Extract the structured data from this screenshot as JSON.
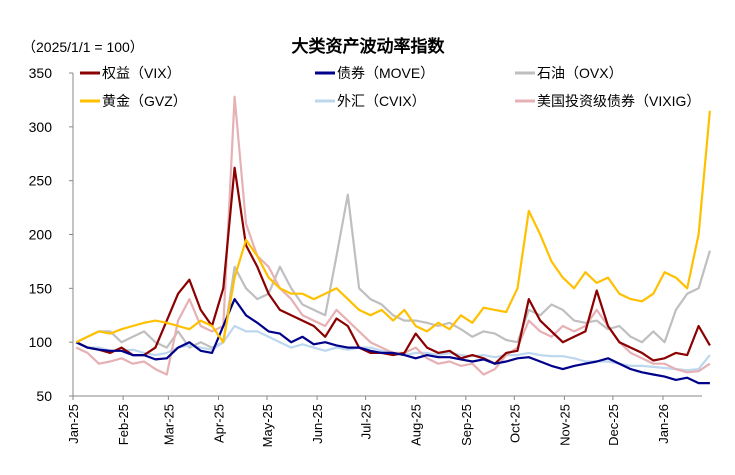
{
  "chart_data": {
    "type": "line",
    "title": "大类资产波动率指数",
    "subtitle": "（2025/1/1 = 100）",
    "xlabel": "",
    "ylabel": "",
    "ylim": [
      50,
      350
    ],
    "yticks": [
      "50",
      "100",
      "150",
      "200",
      "250",
      "300",
      "350"
    ],
    "xticks": [
      {
        "date": "2025-01-01",
        "label": "Jan-25"
      },
      {
        "date": "2025-02-01",
        "label": "Feb-25"
      },
      {
        "date": "2025-03-01",
        "label": "Mar-25"
      },
      {
        "date": "2025-04-01",
        "label": "Apr-25"
      },
      {
        "date": "2025-05-01",
        "label": "May-25"
      },
      {
        "date": "2025-06-01",
        "label": "Jun-25"
      },
      {
        "date": "2025-07-01",
        "label": "Jul-25"
      },
      {
        "date": "2025-08-01",
        "label": "Aug-25"
      },
      {
        "date": "2025-09-01",
        "label": "Sep-25"
      },
      {
        "date": "2025-10-01",
        "label": "Oct-25"
      },
      {
        "date": "2025-11-01",
        "label": "Nov-25"
      },
      {
        "date": "2025-12-01",
        "label": "Dec-25"
      },
      {
        "date": "2026-01-01",
        "label": "Jan-26"
      }
    ],
    "grid": false,
    "legend_placement": "top",
    "x": [
      "2025-01-03",
      "2025-01-10",
      "2025-01-17",
      "2025-01-24",
      "2025-01-31",
      "2025-02-07",
      "2025-02-14",
      "2025-02-21",
      "2025-02-28",
      "2025-03-07",
      "2025-03-14",
      "2025-03-21",
      "2025-03-28",
      "2025-04-04",
      "2025-04-11",
      "2025-04-18",
      "2025-04-25",
      "2025-05-02",
      "2025-05-09",
      "2025-05-16",
      "2025-05-23",
      "2025-05-30",
      "2025-06-06",
      "2025-06-13",
      "2025-06-20",
      "2025-06-27",
      "2025-07-04",
      "2025-07-11",
      "2025-07-18",
      "2025-07-25",
      "2025-08-01",
      "2025-08-08",
      "2025-08-15",
      "2025-08-22",
      "2025-08-29",
      "2025-09-05",
      "2025-09-12",
      "2025-09-19",
      "2025-09-26",
      "2025-10-03",
      "2025-10-10",
      "2025-10-17",
      "2025-10-24",
      "2025-10-31",
      "2025-11-07",
      "2025-11-14",
      "2025-11-21",
      "2025-11-28",
      "2025-12-05",
      "2025-12-12",
      "2025-12-19",
      "2025-12-26",
      "2026-01-02",
      "2026-01-09",
      "2026-01-16",
      "2026-01-23",
      "2026-01-30"
    ],
    "series": [
      {
        "name": "权益（VIX）",
        "color": "#8b0000",
        "values": [
          100,
          95,
          93,
          90,
          95,
          88,
          88,
          95,
          120,
          145,
          158,
          130,
          115,
          150,
          262,
          190,
          170,
          145,
          130,
          125,
          120,
          115,
          105,
          122,
          115,
          95,
          90,
          90,
          88,
          90,
          108,
          95,
          90,
          92,
          85,
          88,
          85,
          80,
          90,
          92,
          140,
          120,
          110,
          100,
          105,
          110,
          148,
          115,
          100,
          95,
          90,
          83,
          85,
          90,
          88,
          115,
          97
        ]
      },
      {
        "name": "债券（MOVE）",
        "color": "#00008b",
        "values": [
          100,
          95,
          93,
          92,
          92,
          88,
          88,
          84,
          85,
          95,
          100,
          92,
          90,
          115,
          140,
          125,
          118,
          110,
          108,
          100,
          105,
          98,
          100,
          97,
          95,
          95,
          92,
          90,
          90,
          88,
          85,
          88,
          86,
          86,
          84,
          82,
          84,
          80,
          82,
          85,
          86,
          82,
          78,
          75,
          78,
          80,
          82,
          85,
          80,
          75,
          72,
          70,
          68,
          65,
          67,
          62,
          62
        ]
      },
      {
        "name": "石油（OVX）",
        "color": "#bfbfbf",
        "values": [
          100,
          105,
          110,
          110,
          100,
          105,
          110,
          100,
          95,
          110,
          95,
          100,
          95,
          100,
          170,
          150,
          140,
          145,
          170,
          150,
          135,
          130,
          125,
          180,
          237,
          150,
          140,
          135,
          125,
          120,
          120,
          118,
          115,
          118,
          112,
          105,
          110,
          108,
          102,
          100,
          130,
          125,
          135,
          130,
          120,
          118,
          120,
          112,
          115,
          105,
          100,
          110,
          100,
          130,
          145,
          150,
          185
        ]
      },
      {
        "name": "黄金（GVZ）",
        "color": "#ffc000",
        "values": [
          100,
          105,
          110,
          108,
          112,
          115,
          118,
          120,
          118,
          115,
          112,
          120,
          115,
          100,
          160,
          195,
          180,
          160,
          150,
          145,
          145,
          140,
          145,
          150,
          140,
          130,
          125,
          130,
          120,
          130,
          115,
          110,
          118,
          112,
          125,
          118,
          132,
          130,
          128,
          150,
          222,
          200,
          175,
          160,
          150,
          165,
          155,
          160,
          145,
          140,
          138,
          145,
          165,
          160,
          150,
          200,
          315
        ]
      },
      {
        "name": "外汇（CVIX）",
        "color": "#bdd7ee",
        "values": [
          100,
          95,
          95,
          92,
          92,
          93,
          90,
          88,
          90,
          95,
          97,
          95,
          93,
          100,
          115,
          110,
          110,
          105,
          100,
          95,
          98,
          95,
          92,
          95,
          93,
          95,
          95,
          92,
          90,
          88,
          90,
          90,
          88,
          90,
          88,
          87,
          88,
          86,
          88,
          88,
          90,
          88,
          87,
          87,
          85,
          82,
          82,
          82,
          80,
          78,
          78,
          77,
          76,
          75,
          74,
          75,
          88
        ]
      },
      {
        "name": "美国投资级债券（VIXIG）",
        "color": "#e6b0b4",
        "values": [
          95,
          90,
          80,
          82,
          85,
          80,
          82,
          75,
          70,
          120,
          140,
          115,
          110,
          115,
          328,
          210,
          180,
          170,
          150,
          140,
          125,
          120,
          115,
          130,
          120,
          110,
          100,
          95,
          90,
          90,
          95,
          85,
          80,
          82,
          78,
          80,
          70,
          75,
          88,
          95,
          120,
          110,
          105,
          115,
          110,
          115,
          130,
          115,
          100,
          90,
          85,
          80,
          80,
          75,
          72,
          73,
          80
        ]
      }
    ]
  }
}
